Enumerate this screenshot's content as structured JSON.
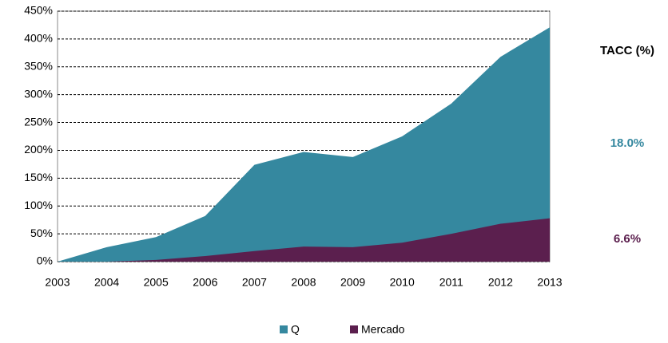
{
  "chart_data": {
    "type": "area",
    "categories": [
      "2003",
      "2004",
      "2005",
      "2006",
      "2007",
      "2008",
      "2009",
      "2010",
      "2011",
      "2012",
      "2013"
    ],
    "series": [
      {
        "name": "Q",
        "color": "#35889f",
        "values": [
          0,
          26,
          44,
          82,
          174,
          197,
          188,
          225,
          284,
          368,
          421
        ]
      },
      {
        "name": "Mercado",
        "color": "#5b1f4e",
        "values": [
          0,
          0,
          3,
          10,
          19,
          27,
          26,
          34,
          50,
          68,
          78
        ]
      }
    ],
    "ylim": [
      0,
      450
    ],
    "yticks": [
      {
        "value": 0,
        "label": "0%"
      },
      {
        "value": 50,
        "label": "50%"
      },
      {
        "value": 100,
        "label": "100%"
      },
      {
        "value": 150,
        "label": "150%"
      },
      {
        "value": 200,
        "label": "200%"
      },
      {
        "value": 250,
        "label": "250%"
      },
      {
        "value": 300,
        "label": "300%"
      },
      {
        "value": 350,
        "label": "350%"
      },
      {
        "value": 400,
        "label": "400%"
      },
      {
        "value": 450,
        "label": "450%"
      }
    ],
    "grid": true,
    "legend": "bottom",
    "annotations": [
      "TACC (%)",
      "18.0%",
      "6.6%"
    ]
  }
}
